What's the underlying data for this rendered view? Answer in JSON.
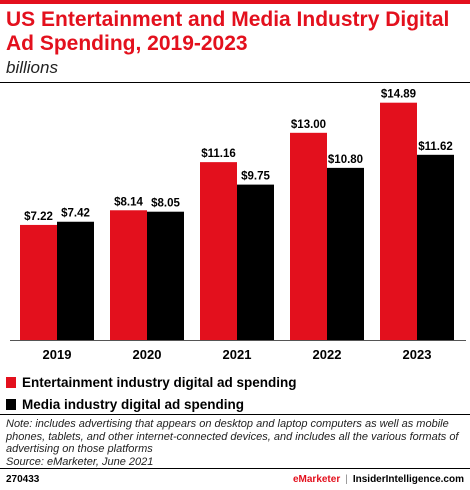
{
  "header": {
    "title": "US Entertainment and Media Industry Digital Ad Spending, 2019-2023",
    "subtitle": "billions"
  },
  "colors": {
    "series1": "#e3101d",
    "series2": "#000000",
    "accent": "#e3101d"
  },
  "chart_data": {
    "type": "bar",
    "title": "US Entertainment and Media Industry Digital Ad Spending, 2019-2023",
    "subtitle": "billions",
    "categories": [
      "2019",
      "2020",
      "2021",
      "2022",
      "2023"
    ],
    "series": [
      {
        "name": "Entertainment industry digital ad spending",
        "values": [
          7.22,
          8.14,
          11.16,
          13.0,
          14.89
        ],
        "labels": [
          "$7.22",
          "$8.14",
          "$11.16",
          "$13.00",
          "$14.89"
        ]
      },
      {
        "name": "Media industry digital ad spending",
        "values": [
          7.42,
          8.05,
          9.75,
          10.8,
          11.62
        ],
        "labels": [
          "$7.42",
          "$8.05",
          "$9.75",
          "$10.80",
          "$11.62"
        ]
      }
    ],
    "ylim": [
      0,
      16
    ],
    "grid": false,
    "legend": "bottom"
  },
  "legend": {
    "items": [
      "Entertainment industry digital ad spending",
      "Media industry digital ad spending"
    ]
  },
  "footnote": {
    "note": "Note: includes advertising that appears on desktop and laptop computers as well as mobile phones, tablets, and other internet-connected devices, and includes all the various formats of advertising on those platforms",
    "source": "Source: eMarketer, June 2021"
  },
  "footer": {
    "id": "270433",
    "brand_a": "eMarketer",
    "separator": "|",
    "brand_b": "InsiderIntelligence.com"
  }
}
